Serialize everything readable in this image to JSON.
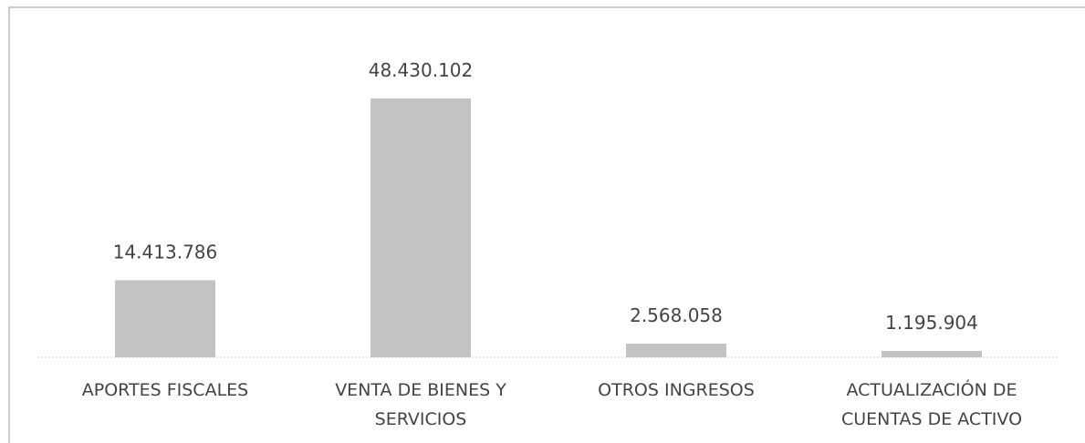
{
  "chart_data": {
    "type": "bar",
    "categories": [
      "APORTES FISCALES",
      "VENTA DE BIENES Y SERVICIOS",
      "OTROS INGRESOS",
      "ACTUALIZACIÓN DE CUENTAS DE ACTIVO"
    ],
    "values": [
      14413786,
      48430102,
      2568058,
      1195904
    ],
    "value_labels": [
      "14.413.786",
      "48.430.102",
      "2.568.058",
      "1.195.904"
    ],
    "color": "#c3c3c3"
  }
}
